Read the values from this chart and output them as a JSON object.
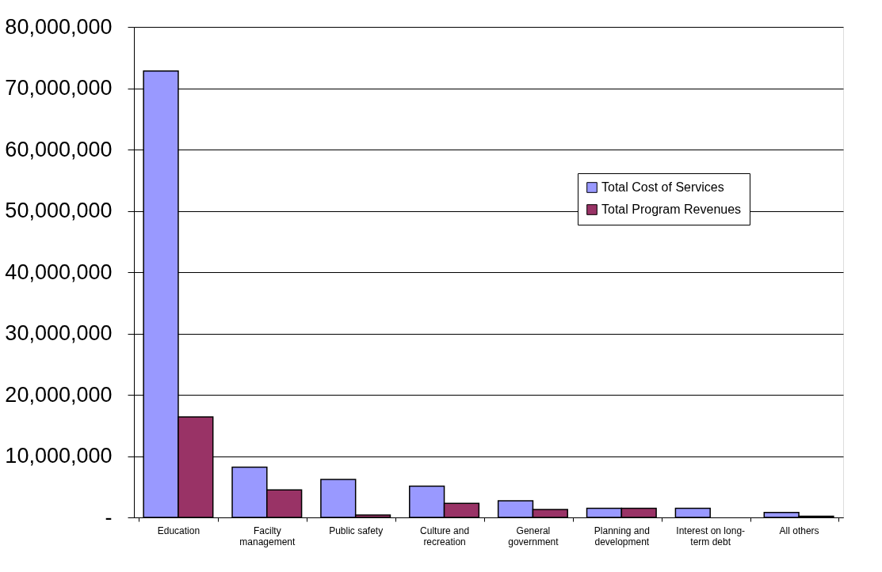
{
  "chart_data": {
    "type": "bar",
    "categories": [
      "Education",
      "Facilty management",
      "Public safety",
      "Culture and recreation",
      "General government",
      "Planning and development",
      "Interest on long-term debt",
      "All others"
    ],
    "series": [
      {
        "name": "Total Cost of Services",
        "color": "#9999ff",
        "values": [
          72800000,
          8200000,
          6200000,
          5100000,
          2700000,
          1500000,
          1500000,
          800000
        ]
      },
      {
        "name": "Total Program Revenues",
        "color": "#993366",
        "values": [
          16400000,
          4500000,
          400000,
          2300000,
          1300000,
          1500000,
          null,
          200000
        ]
      }
    ],
    "ylim": [
      0,
      80000000
    ],
    "yticks": [
      {
        "value": 0,
        "label": "-"
      },
      {
        "value": 10000000,
        "label": "10,000,000"
      },
      {
        "value": 20000000,
        "label": "20,000,000"
      },
      {
        "value": 30000000,
        "label": "30,000,000"
      },
      {
        "value": 40000000,
        "label": "40,000,000"
      },
      {
        "value": 50000000,
        "label": "50,000,000"
      },
      {
        "value": 60000000,
        "label": "60,000,000"
      },
      {
        "value": 70000000,
        "label": "70,000,000"
      },
      {
        "value": 80000000,
        "label": "80,000,000"
      }
    ],
    "grid": "y",
    "legend": "right"
  }
}
